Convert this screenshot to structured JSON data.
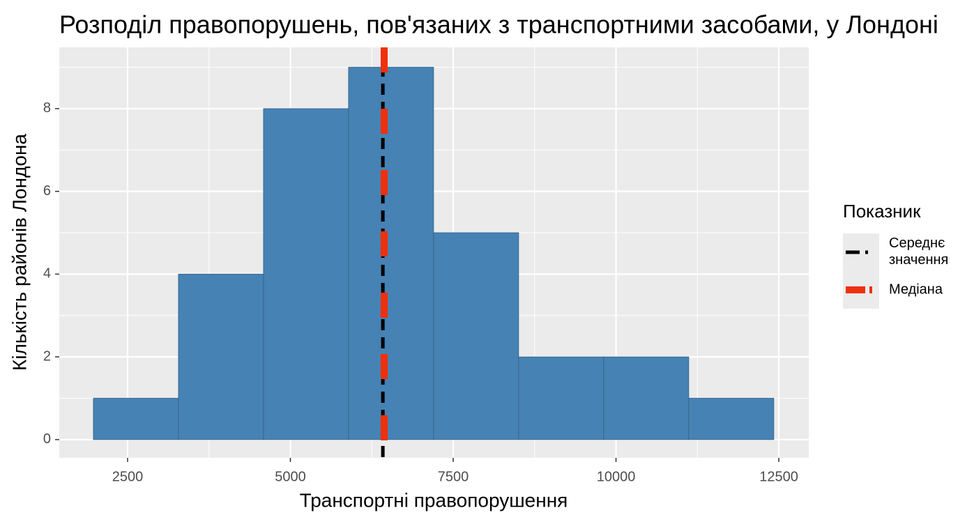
{
  "chart_data": {
    "type": "histogram",
    "title": "Розподіл правопорушень, пов'язаних з транспортними засобами, у Лондоні",
    "x_label": "Транспортні правопорушення",
    "y_label": "Кількість районів Лондона",
    "bins": [
      1975,
      3281,
      4587,
      5893,
      7199,
      8505,
      9811,
      11117,
      12423
    ],
    "values": [
      1,
      4,
      8,
      9,
      5,
      2,
      2,
      1
    ],
    "color": "#4682b4",
    "xlim": [
      1451,
      12960
    ],
    "ylim": [
      -0.44,
      9.48
    ],
    "xticks": [
      2500,
      5000,
      7500,
      10000,
      12500
    ],
    "yticks": [
      0,
      2,
      4,
      6,
      8
    ],
    "grid": true,
    "legend_title": "Показник",
    "reference_lines": [
      {
        "name": "Середнє значення",
        "value": 6420,
        "color": "#000000"
      },
      {
        "name": "Медіана",
        "value": 6440,
        "color": "#f0300c"
      }
    ]
  }
}
